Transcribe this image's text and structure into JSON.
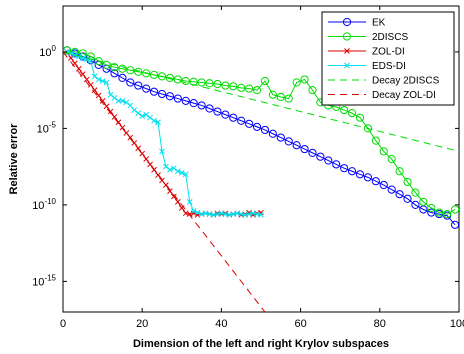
{
  "chart_data": {
    "type": "line",
    "title": "",
    "xlabel": "Dimension of the left and right Krylov subspaces",
    "ylabel": "Relative error",
    "xlim": [
      0,
      100
    ],
    "ylim_log10": [
      -17,
      3
    ],
    "yscale": "log",
    "grid": false,
    "legend_position": "top-right",
    "x_ticks": [
      "0",
      "20",
      "40",
      "60",
      "80",
      "100"
    ],
    "y_ticks": [
      {
        "base": "10",
        "exp": "0",
        "log10": 0
      },
      {
        "base": "10",
        "exp": "-5",
        "log10": -5
      },
      {
        "base": "10",
        "exp": "-10",
        "log10": -10
      },
      {
        "base": "10",
        "exp": "-15",
        "log10": -15
      }
    ],
    "series": [
      {
        "name": "EK",
        "color": "#0000ff",
        "marker": "circle",
        "style": "solid",
        "x": [
          1,
          3,
          5,
          7,
          9,
          11,
          13,
          15,
          17,
          19,
          21,
          23,
          25,
          27,
          29,
          31,
          33,
          35,
          37,
          39,
          41,
          43,
          45,
          47,
          49,
          51,
          53,
          55,
          57,
          59,
          61,
          63,
          65,
          67,
          69,
          71,
          73,
          75,
          77,
          79,
          81,
          83,
          85,
          87,
          89,
          91,
          93,
          95,
          97,
          99
        ],
        "log10y": [
          0.1,
          -0.1,
          -0.3,
          -0.55,
          -0.85,
          -1.1,
          -1.4,
          -1.7,
          -2.0,
          -2.2,
          -2.4,
          -2.6,
          -2.75,
          -2.9,
          -3.05,
          -3.2,
          -3.35,
          -3.5,
          -3.7,
          -3.9,
          -4.1,
          -4.3,
          -4.5,
          -4.7,
          -4.9,
          -5.1,
          -5.35,
          -5.6,
          -5.85,
          -6.1,
          -6.35,
          -6.6,
          -6.85,
          -7.1,
          -7.35,
          -7.6,
          -7.8,
          -8.0,
          -8.2,
          -8.45,
          -8.7,
          -9.0,
          -9.3,
          -9.6,
          -10.0,
          -10.3,
          -10.5,
          -10.6,
          -10.7,
          -11.3
        ]
      },
      {
        "name": "2DISCS",
        "color": "#00dd00",
        "marker": "circle",
        "style": "solid",
        "x": [
          1,
          3,
          5,
          7,
          9,
          11,
          13,
          15,
          17,
          19,
          21,
          23,
          25,
          27,
          29,
          31,
          33,
          35,
          37,
          39,
          41,
          43,
          45,
          47,
          49,
          51,
          53,
          55,
          57,
          59,
          61,
          63,
          65,
          67,
          69,
          71,
          73,
          75,
          77,
          79,
          81,
          83,
          85,
          87,
          89,
          91,
          93,
          95,
          97,
          99
        ],
        "log10y": [
          0.1,
          0.0,
          -0.1,
          -0.3,
          -0.6,
          -0.85,
          -1.0,
          -1.1,
          -1.2,
          -1.3,
          -1.4,
          -1.5,
          -1.6,
          -1.7,
          -1.8,
          -1.9,
          -1.95,
          -2.0,
          -2.05,
          -2.1,
          -2.2,
          -2.25,
          -2.35,
          -2.4,
          -2.5,
          -1.9,
          -2.8,
          -2.95,
          -3.05,
          -2.0,
          -1.8,
          -2.5,
          -3.3,
          -3.5,
          -3.6,
          -3.8,
          -4.0,
          -4.3,
          -5.0,
          -5.8,
          -6.5,
          -7.0,
          -7.8,
          -8.5,
          -9.2,
          -9.8,
          -10.2,
          -10.5,
          -10.6,
          -10.3
        ]
      },
      {
        "name": "ZOL-DI",
        "color": "#dd0000",
        "marker": "x",
        "style": "solid",
        "x": [
          1,
          2,
          3,
          4,
          5,
          6,
          7,
          8,
          9,
          10,
          11,
          12,
          13,
          14,
          15,
          16,
          17,
          18,
          19,
          20,
          21,
          22,
          23,
          24,
          25,
          26,
          27,
          28,
          29,
          30,
          31,
          32,
          33,
          34,
          35,
          36,
          37,
          38,
          39,
          40,
          41,
          42,
          43,
          44,
          45,
          46,
          47,
          48,
          49,
          50
        ],
        "log10y": [
          0.0,
          -0.4,
          -0.75,
          -1.1,
          -1.45,
          -1.8,
          -2.15,
          -2.5,
          -2.85,
          -3.2,
          -3.55,
          -3.9,
          -4.25,
          -4.6,
          -4.95,
          -5.3,
          -5.6,
          -5.95,
          -6.3,
          -6.65,
          -7.0,
          -7.35,
          -7.7,
          -8.05,
          -8.4,
          -8.7,
          -9.1,
          -9.45,
          -9.8,
          -10.2,
          -10.55,
          -10.6,
          -10.55,
          -10.65,
          -10.6,
          -10.55,
          -10.6,
          -10.65,
          -10.55,
          -10.6,
          -10.55,
          -10.65,
          -10.6,
          -10.55,
          -10.65,
          -10.6,
          -10.5,
          -10.65,
          -10.55,
          -10.5
        ]
      },
      {
        "name": "EDS-DI",
        "color": "#00e0f0",
        "marker": "x",
        "style": "solid",
        "x": [
          1,
          2,
          3,
          4,
          5,
          6,
          7,
          8,
          9,
          10,
          11,
          12,
          13,
          14,
          15,
          16,
          17,
          18,
          19,
          20,
          21,
          22,
          23,
          24,
          25,
          26,
          27,
          28,
          29,
          30,
          31,
          32,
          33,
          34,
          35,
          36,
          37,
          38,
          39,
          40,
          41,
          42,
          43,
          44,
          45,
          46,
          47,
          48,
          49,
          50
        ],
        "log10y": [
          0.0,
          -0.1,
          -0.2,
          -0.3,
          -0.4,
          -0.5,
          -0.6,
          -1.6,
          -1.8,
          -1.9,
          -2.0,
          -2.8,
          -3.0,
          -3.2,
          -3.2,
          -3.3,
          -3.5,
          -3.8,
          -4.0,
          -4.2,
          -4.1,
          -4.3,
          -4.5,
          -4.6,
          -6.5,
          -7.5,
          -7.7,
          -7.6,
          -7.8,
          -7.9,
          -8.0,
          -9.8,
          -10.4,
          -10.5,
          -10.6,
          -10.55,
          -10.6,
          -10.65,
          -10.6,
          -10.55,
          -10.6,
          -10.65,
          -10.6,
          -10.55,
          -10.6,
          -10.65,
          -10.6,
          -10.55,
          -10.6,
          -10.65
        ]
      },
      {
        "name": "Decay 2DISCS",
        "color": "#00dd00",
        "marker": "none",
        "style": "dashed",
        "x": [
          0,
          100
        ],
        "log10y": [
          0.0,
          -6.5
        ]
      },
      {
        "name": "Decay ZOL-DI",
        "color": "#dd0000",
        "marker": "none",
        "style": "dashed",
        "x": [
          0,
          51
        ],
        "log10y": [
          0.0,
          -17.0
        ]
      }
    ]
  }
}
